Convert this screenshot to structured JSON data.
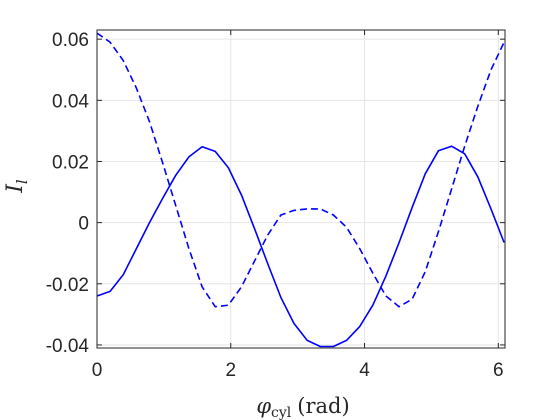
{
  "chart_data": {
    "type": "line",
    "xlabel": "φcyl (rad)",
    "xlabel_main": "φ",
    "xlabel_sub": "cyl",
    "xlabel_unit": "(rad)",
    "ylabel": "Il",
    "ylabel_main": "I",
    "ylabel_sub": "l",
    "xlim": [
      0,
      6.1
    ],
    "ylim": [
      -0.041,
      0.063
    ],
    "grid": true,
    "x_ticks": [
      0,
      2,
      4,
      6
    ],
    "x_tick_labels": [
      "0",
      "2",
      "4",
      "6"
    ],
    "y_ticks": [
      0.06,
      0.04,
      0.02,
      0,
      -0.02,
      -0.04
    ],
    "y_tick_labels": [
      "0.06",
      "0.04",
      "0.02",
      "0",
      "-0.02",
      "-0.04"
    ],
    "line_color": "#0000ff",
    "x": [
      0.0,
      0.196,
      0.393,
      0.589,
      0.785,
      0.982,
      1.178,
      1.374,
      1.571,
      1.767,
      1.963,
      2.16,
      2.356,
      2.553,
      2.749,
      2.945,
      3.142,
      3.338,
      3.534,
      3.731,
      3.927,
      4.123,
      4.32,
      4.516,
      4.712,
      4.909,
      5.105,
      5.301,
      5.498,
      5.694,
      5.89,
      6.087
    ],
    "series": [
      {
        "style": "solid",
        "values": [
          -0.024,
          -0.0225,
          -0.017,
          -0.0085,
          0.0,
          0.008,
          0.0155,
          0.0215,
          0.0248,
          0.0233,
          0.018,
          0.009,
          -0.002,
          -0.0135,
          -0.0245,
          -0.033,
          -0.0385,
          -0.0405,
          -0.0405,
          -0.0385,
          -0.034,
          -0.027,
          -0.0175,
          -0.0065,
          0.005,
          0.016,
          0.0235,
          0.025,
          0.0225,
          0.015,
          0.0045,
          -0.0065
        ]
      },
      {
        "style": "dashed",
        "values": [
          0.062,
          0.059,
          0.053,
          0.044,
          0.033,
          0.0195,
          0.0055,
          -0.0085,
          -0.021,
          -0.0275,
          -0.027,
          -0.021,
          -0.0125,
          -0.004,
          0.0025,
          0.004,
          0.0045,
          0.0045,
          0.0025,
          -0.0015,
          -0.0085,
          -0.0165,
          -0.024,
          -0.0275,
          -0.025,
          -0.016,
          -0.003,
          0.011,
          0.025,
          0.038,
          0.05,
          0.059
        ]
      }
    ]
  }
}
